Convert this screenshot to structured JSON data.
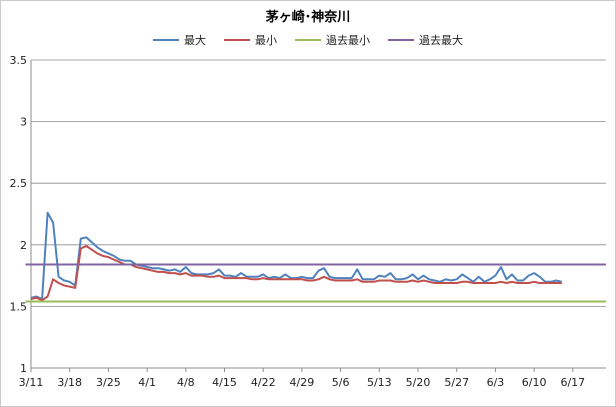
{
  "chart_data": {
    "type": "line",
    "title": "茅ヶ崎･神奈川",
    "xlabel": "",
    "ylabel": "",
    "ylim": [
      1,
      3.5
    ],
    "y_ticks": [
      "1",
      "1.5",
      "2",
      "2.5",
      "3",
      "3.5"
    ],
    "x_tick_labels": [
      "3/11",
      "3/18",
      "3/25",
      "4/1",
      "4/8",
      "4/15",
      "4/22",
      "4/29",
      "5/6",
      "5/13",
      "5/20",
      "5/27",
      "6/3",
      "6/10",
      "6/17"
    ],
    "x_range_days": [
      0,
      104
    ],
    "grid": "horizontal",
    "legend_position": "top",
    "series": [
      {
        "name": "最大",
        "color": "#4f81bd",
        "points": [
          [
            0,
            1.57
          ],
          [
            1,
            1.58
          ],
          [
            2,
            1.56
          ],
          [
            3,
            2.26
          ],
          [
            4,
            2.18
          ],
          [
            5,
            1.74
          ],
          [
            6,
            1.71
          ],
          [
            7,
            1.7
          ],
          [
            8,
            1.67
          ],
          [
            9,
            2.05
          ],
          [
            10,
            2.06
          ],
          [
            11,
            2.02
          ],
          [
            12,
            1.98
          ],
          [
            13,
            1.95
          ],
          [
            14,
            1.93
          ],
          [
            15,
            1.91
          ],
          [
            16,
            1.88
          ],
          [
            17,
            1.87
          ],
          [
            18,
            1.87
          ],
          [
            19,
            1.84
          ],
          [
            20,
            1.83
          ],
          [
            21,
            1.82
          ],
          [
            22,
            1.81
          ],
          [
            23,
            1.81
          ],
          [
            24,
            1.8
          ],
          [
            25,
            1.79
          ],
          [
            26,
            1.8
          ],
          [
            27,
            1.78
          ],
          [
            28,
            1.82
          ],
          [
            29,
            1.77
          ],
          [
            30,
            1.76
          ],
          [
            31,
            1.76
          ],
          [
            32,
            1.76
          ],
          [
            33,
            1.77
          ],
          [
            34,
            1.8
          ],
          [
            35,
            1.75
          ],
          [
            36,
            1.75
          ],
          [
            37,
            1.74
          ],
          [
            38,
            1.77
          ],
          [
            39,
            1.74
          ],
          [
            40,
            1.74
          ],
          [
            41,
            1.74
          ],
          [
            42,
            1.76
          ],
          [
            43,
            1.73
          ],
          [
            44,
            1.74
          ],
          [
            45,
            1.73
          ],
          [
            46,
            1.76
          ],
          [
            47,
            1.73
          ],
          [
            48,
            1.73
          ],
          [
            49,
            1.74
          ],
          [
            50,
            1.73
          ],
          [
            51,
            1.73
          ],
          [
            52,
            1.79
          ],
          [
            53,
            1.81
          ],
          [
            54,
            1.74
          ],
          [
            55,
            1.73
          ],
          [
            56,
            1.73
          ],
          [
            57,
            1.73
          ],
          [
            58,
            1.73
          ],
          [
            59,
            1.8
          ],
          [
            60,
            1.72
          ],
          [
            61,
            1.72
          ],
          [
            62,
            1.72
          ],
          [
            63,
            1.75
          ],
          [
            64,
            1.74
          ],
          [
            65,
            1.77
          ],
          [
            66,
            1.72
          ],
          [
            67,
            1.72
          ],
          [
            68,
            1.73
          ],
          [
            69,
            1.76
          ],
          [
            70,
            1.72
          ],
          [
            71,
            1.75
          ],
          [
            72,
            1.72
          ],
          [
            73,
            1.71
          ],
          [
            74,
            1.7
          ],
          [
            75,
            1.72
          ],
          [
            76,
            1.71
          ],
          [
            77,
            1.72
          ],
          [
            78,
            1.76
          ],
          [
            79,
            1.73
          ],
          [
            80,
            1.7
          ],
          [
            81,
            1.74
          ],
          [
            82,
            1.7
          ],
          [
            83,
            1.72
          ],
          [
            84,
            1.75
          ],
          [
            85,
            1.82
          ],
          [
            86,
            1.72
          ],
          [
            87,
            1.76
          ],
          [
            88,
            1.71
          ],
          [
            89,
            1.71
          ],
          [
            90,
            1.75
          ],
          [
            91,
            1.77
          ],
          [
            92,
            1.74
          ],
          [
            93,
            1.7
          ],
          [
            94,
            1.7
          ],
          [
            95,
            1.71
          ],
          [
            96,
            1.7
          ]
        ]
      },
      {
        "name": "最小",
        "color": "#c0504d",
        "points": [
          [
            0,
            1.56
          ],
          [
            1,
            1.57
          ],
          [
            2,
            1.55
          ],
          [
            3,
            1.58
          ],
          [
            4,
            1.72
          ],
          [
            5,
            1.69
          ],
          [
            6,
            1.67
          ],
          [
            7,
            1.66
          ],
          [
            8,
            1.65
          ],
          [
            9,
            1.97
          ],
          [
            10,
            1.99
          ],
          [
            11,
            1.96
          ],
          [
            12,
            1.93
          ],
          [
            13,
            1.91
          ],
          [
            14,
            1.9
          ],
          [
            15,
            1.88
          ],
          [
            16,
            1.86
          ],
          [
            17,
            1.84
          ],
          [
            18,
            1.84
          ],
          [
            19,
            1.82
          ],
          [
            20,
            1.81
          ],
          [
            21,
            1.8
          ],
          [
            22,
            1.79
          ],
          [
            23,
            1.78
          ],
          [
            24,
            1.78
          ],
          [
            25,
            1.77
          ],
          [
            26,
            1.77
          ],
          [
            27,
            1.76
          ],
          [
            28,
            1.77
          ],
          [
            29,
            1.75
          ],
          [
            30,
            1.75
          ],
          [
            31,
            1.75
          ],
          [
            32,
            1.74
          ],
          [
            33,
            1.74
          ],
          [
            34,
            1.75
          ],
          [
            35,
            1.73
          ],
          [
            36,
            1.73
          ],
          [
            37,
            1.73
          ],
          [
            38,
            1.73
          ],
          [
            39,
            1.73
          ],
          [
            40,
            1.72
          ],
          [
            41,
            1.72
          ],
          [
            42,
            1.73
          ],
          [
            43,
            1.72
          ],
          [
            44,
            1.72
          ],
          [
            45,
            1.72
          ],
          [
            46,
            1.72
          ],
          [
            47,
            1.72
          ],
          [
            48,
            1.72
          ],
          [
            49,
            1.72
          ],
          [
            50,
            1.71
          ],
          [
            51,
            1.71
          ],
          [
            52,
            1.72
          ],
          [
            53,
            1.74
          ],
          [
            54,
            1.72
          ],
          [
            55,
            1.71
          ],
          [
            56,
            1.71
          ],
          [
            57,
            1.71
          ],
          [
            58,
            1.71
          ],
          [
            59,
            1.72
          ],
          [
            60,
            1.7
          ],
          [
            61,
            1.7
          ],
          [
            62,
            1.7
          ],
          [
            63,
            1.71
          ],
          [
            64,
            1.71
          ],
          [
            65,
            1.71
          ],
          [
            66,
            1.7
          ],
          [
            67,
            1.7
          ],
          [
            68,
            1.7
          ],
          [
            69,
            1.71
          ],
          [
            70,
            1.7
          ],
          [
            71,
            1.71
          ],
          [
            72,
            1.7
          ],
          [
            73,
            1.69
          ],
          [
            74,
            1.69
          ],
          [
            75,
            1.69
          ],
          [
            76,
            1.69
          ],
          [
            77,
            1.69
          ],
          [
            78,
            1.7
          ],
          [
            79,
            1.7
          ],
          [
            80,
            1.69
          ],
          [
            81,
            1.69
          ],
          [
            82,
            1.69
          ],
          [
            83,
            1.69
          ],
          [
            84,
            1.69
          ],
          [
            85,
            1.7
          ],
          [
            86,
            1.69
          ],
          [
            87,
            1.7
          ],
          [
            88,
            1.69
          ],
          [
            89,
            1.69
          ],
          [
            90,
            1.69
          ],
          [
            91,
            1.7
          ],
          [
            92,
            1.69
          ],
          [
            93,
            1.69
          ],
          [
            94,
            1.69
          ],
          [
            95,
            1.69
          ],
          [
            96,
            1.69
          ]
        ]
      },
      {
        "name": "過去最小",
        "color": "#9bbb59",
        "points": [
          [
            -1,
            1.54
          ],
          [
            104,
            1.54
          ]
        ]
      },
      {
        "name": "過去最大",
        "color": "#8064a2",
        "points": [
          [
            -1,
            1.84
          ],
          [
            104,
            1.84
          ]
        ]
      }
    ]
  }
}
